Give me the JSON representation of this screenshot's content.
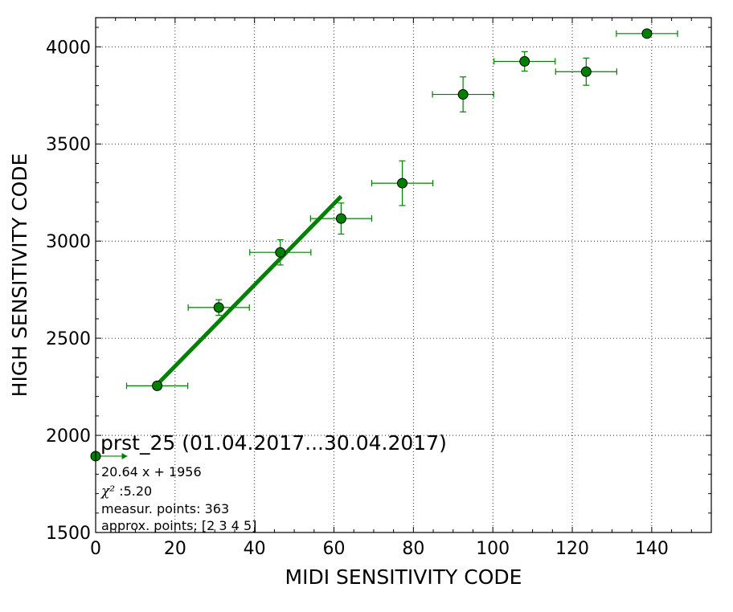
{
  "chart_data": {
    "type": "scatter",
    "xlabel": "MIDI SENSITIVITY CODE",
    "ylabel": "HIGH SENSITIVITY CODE",
    "xlim": [
      0,
      155
    ],
    "ylim": [
      1500,
      4150
    ],
    "xticks": [
      0,
      20,
      40,
      60,
      80,
      100,
      120,
      140
    ],
    "yticks": [
      1500,
      2000,
      2500,
      3000,
      3500,
      4000
    ],
    "grid": true,
    "color": "#008000",
    "points": [
      {
        "x": 0,
        "y": 1893,
        "xerr": [
          0,
          8
        ],
        "yerr": 0
      },
      {
        "x": 15.5,
        "y": 2255,
        "xerr": 7.7,
        "yerr": 20
      },
      {
        "x": 31,
        "y": 2658,
        "xerr": 7.7,
        "yerr": 40
      },
      {
        "x": 46.5,
        "y": 2942,
        "xerr": 7.7,
        "yerr": 65
      },
      {
        "x": 61.8,
        "y": 3116,
        "xerr": 7.7,
        "yerr": 80
      },
      {
        "x": 77.2,
        "y": 3298,
        "xerr": 7.7,
        "yerr": 115
      },
      {
        "x": 92.5,
        "y": 3755,
        "xerr": 7.7,
        "yerr": 90
      },
      {
        "x": 108,
        "y": 3925,
        "xerr": 7.7,
        "yerr": 50
      },
      {
        "x": 123.5,
        "y": 3872,
        "xerr": 7.7,
        "yerr": 70
      },
      {
        "x": 138.8,
        "y": 4068,
        "xerr": 7.7,
        "yerr": 15
      }
    ],
    "fit": {
      "slope": 20.64,
      "intercept": 1956,
      "x_range": [
        15.5,
        61.8
      ]
    },
    "annotation": {
      "title": "prst_25 (01.04.2017...30.04.2017)",
      "equation": "20.64 x + 1956",
      "chi_symbol": "χ²",
      "chi_value": " :5.20",
      "measur": "measur. points: 363",
      "approx": "approx. points: [2 3 4 5]"
    }
  }
}
